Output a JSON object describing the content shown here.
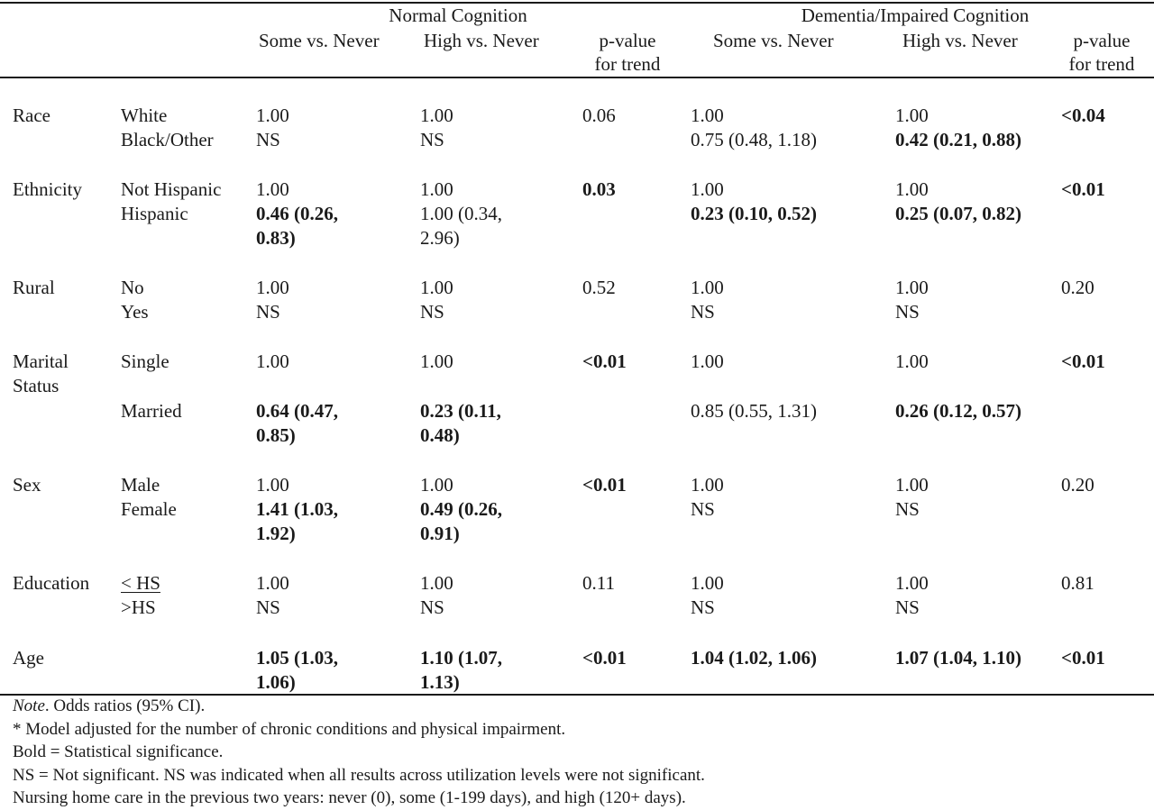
{
  "header": {
    "group_normal": "Normal Cognition",
    "group_dementia": "Dementia/Impaired Cognition",
    "some_vs_never": "Some vs. Never",
    "high_vs_never": "High vs. Never",
    "pvalue_line1": "p-value",
    "pvalue_line2": "for trend"
  },
  "rows": {
    "race": {
      "label": "Race",
      "sub1": "White",
      "sub2": "Black/Other",
      "nc_some_1": "1.00",
      "nc_some_2": "NS",
      "nc_high_1": "1.00",
      "nc_high_2": "NS",
      "nc_p": "0.06",
      "dc_some_1": "1.00",
      "dc_some_2": "0.75 (0.48, 1.18)",
      "dc_high_1": "1.00",
      "dc_high_2": "0.42 (0.21, 0.88)",
      "dc_p": "<0.04"
    },
    "ethnicity": {
      "label": "Ethnicity",
      "sub1": "Not Hispanic",
      "sub2": "Hispanic",
      "nc_some_1": "1.00",
      "nc_some_2a": "0.46 (0.26,",
      "nc_some_2b": "0.83)",
      "nc_high_1": "1.00",
      "nc_high_2a": "1.00 (0.34,",
      "nc_high_2b": "2.96)",
      "nc_p": "0.03",
      "dc_some_1": "1.00",
      "dc_some_2": "0.23 (0.10, 0.52)",
      "dc_high_1": "1.00",
      "dc_high_2": "0.25 (0.07, 0.82)",
      "dc_p": "<0.01"
    },
    "rural": {
      "label": "Rural",
      "sub1": "No",
      "sub2": "Yes",
      "nc_some_1": "1.00",
      "nc_some_2": "NS",
      "nc_high_1": "1.00",
      "nc_high_2": "NS",
      "nc_p": "0.52",
      "dc_some_1": "1.00",
      "dc_some_2": "NS",
      "dc_high_1": "1.00",
      "dc_high_2": "NS",
      "dc_p": "0.20"
    },
    "marital": {
      "label_1": "Marital",
      "label_2": "Status",
      "sub1": "Single",
      "sub2": "Married",
      "nc_some_1": "1.00",
      "nc_some_2a": "0.64 (0.47,",
      "nc_some_2b": "0.85)",
      "nc_high_1": "1.00",
      "nc_high_2a": "0.23 (0.11,",
      "nc_high_2b": "0.48)",
      "nc_p": "<0.01",
      "dc_some_1": "1.00",
      "dc_some_2": "0.85 (0.55, 1.31)",
      "dc_high_1": "1.00",
      "dc_high_2": "0.26 (0.12, 0.57)",
      "dc_p": "<0.01"
    },
    "sex": {
      "label": "Sex",
      "sub1": "Male",
      "sub2": "Female",
      "nc_some_1": "1.00",
      "nc_some_2a": "1.41 (1.03,",
      "nc_some_2b": "1.92)",
      "nc_high_1": "1.00",
      "nc_high_2a": "0.49 (0.26,",
      "nc_high_2b": "0.91)",
      "nc_p": "<0.01",
      "dc_some_1": "1.00",
      "dc_some_2": "NS",
      "dc_high_1": "1.00",
      "dc_high_2": "NS",
      "dc_p": "0.20"
    },
    "education": {
      "label": "Education",
      "sub1": "< HS",
      "sub2": ">HS",
      "nc_some_1": "1.00",
      "nc_some_2": "NS",
      "nc_high_1": "1.00",
      "nc_high_2": "NS",
      "nc_p": "0.11",
      "dc_some_1": "1.00",
      "dc_some_2": "NS",
      "dc_high_1": "1.00",
      "dc_high_2": "NS",
      "dc_p": "0.81"
    },
    "age": {
      "label": "Age",
      "nc_some_a": "1.05 (1.03,",
      "nc_some_b": "1.06)",
      "nc_high_a": "1.10 (1.07,",
      "nc_high_b": "1.13)",
      "nc_p": "<0.01",
      "dc_some": "1.04 (1.02, 1.06)",
      "dc_high": "1.07 (1.04, 1.10)",
      "dc_p": "<0.01"
    }
  },
  "notes": {
    "note_label": "Note",
    "note_text": ". Odds ratios (95% CI).",
    "line2": "* Model adjusted for the number of chronic conditions and physical impairment.",
    "line3": "Bold = Statistical significance.",
    "line4": "NS = Not significant. NS was indicated when all results across utilization levels were not significant.",
    "line5": "Nursing home care in the previous two years: never (0), some (1-199 days), and high (120+ days)."
  }
}
